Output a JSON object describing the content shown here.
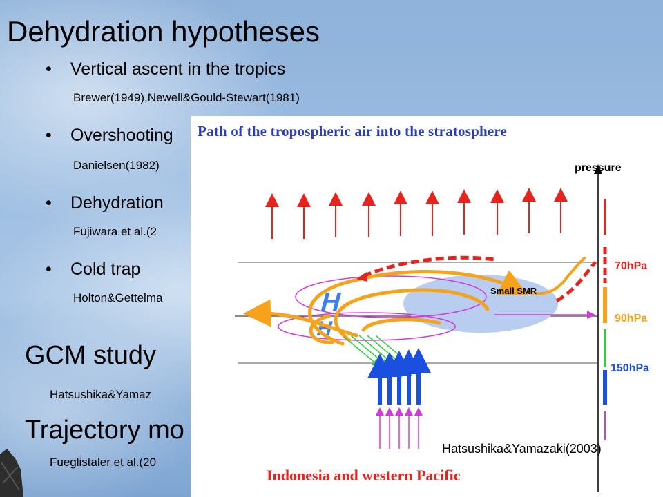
{
  "slide": {
    "title": "Dehydration hypotheses",
    "bullets": [
      {
        "text": "Vertical ascent in the tropics",
        "ref": "Brewer(1949),Newell&Gould-Stewart(1981)"
      },
      {
        "text": "Overshooting",
        "ref": "Danielsen(1982)"
      },
      {
        "text": "Dehydration",
        "ref": "Fujiwara et al.(2"
      },
      {
        "text": "Cold trap",
        "ref": "Holton&Gettelma"
      }
    ],
    "sections": [
      {
        "title": "GCM study",
        "ref": "Hatsushika&Yamaz"
      },
      {
        "title": "Trajectory mo",
        "ref": "Fueglistaler et al.(20"
      }
    ]
  },
  "figure": {
    "title": "Path of the tropospheric air into the stratosphere",
    "pressure_axis_label": "pressure",
    "levels": [
      "70hPa",
      "90hPa",
      "150hPa"
    ],
    "region_label": "Small SMR",
    "high_marker": "H",
    "bottom_label": "Indonesia and western Pacific",
    "credit": "Hatsushika&Yamazaki(2003)",
    "colors": {
      "title": "#2b3fb0",
      "red": "#e8221c",
      "orange": "#f7a21b",
      "blue": "#1a4fe0",
      "green": "#2bd13a",
      "magenta": "#d23bd8",
      "ellipse_fill": "#b9cdf0"
    }
  }
}
